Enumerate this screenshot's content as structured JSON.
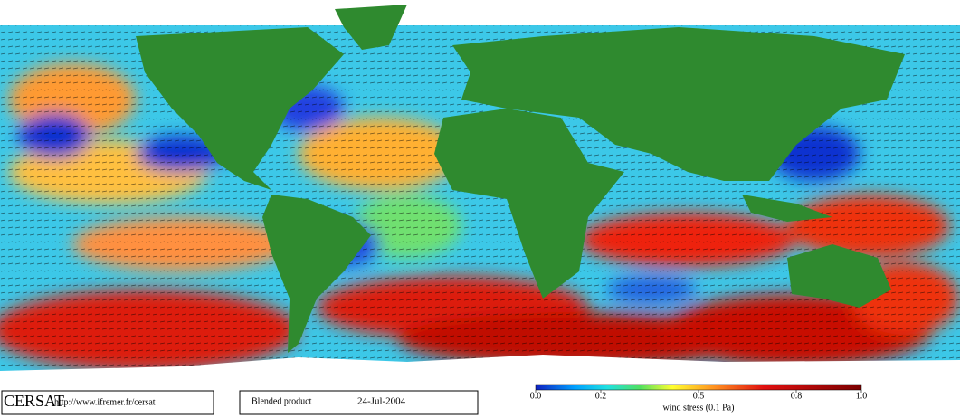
{
  "header": {
    "logo": "CERSAT",
    "url": "http://www.ifremer.fr/cersat"
  },
  "product": {
    "name": "Blended product",
    "date": "24-Jul-2004"
  },
  "colorbar": {
    "label": "wind stress (0.1 Pa)",
    "lim": [
      0,
      1
    ],
    "ticks": [
      {
        "value": 0,
        "label": "0.0"
      },
      {
        "value": 0.2,
        "label": "0.2"
      },
      {
        "value": 0.5,
        "label": "0.5"
      },
      {
        "value": 0.8,
        "label": "0.8"
      },
      {
        "value": 1,
        "label": "1.0"
      }
    ]
  }
}
